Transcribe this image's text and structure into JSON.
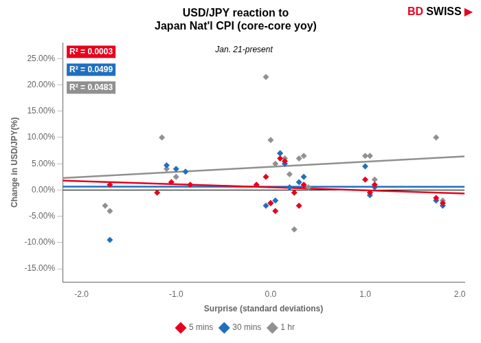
{
  "chart_data": {
    "type": "scatter",
    "title": [
      "USD/JPY reaction to",
      "Japan Nat'l CPI (core-core yoy)"
    ],
    "subtitle": "Jan. 21-present",
    "x_label": "Surprise (standard deviations)",
    "y_label": "Change in USD/JPY(%)",
    "xlim": [
      -2.2,
      2.05
    ],
    "ylim": [
      -0.175,
      0.28
    ],
    "xticks": [
      {
        "value": -2.0,
        "label": "-2.0"
      },
      {
        "value": -1.0,
        "label": "-1.0"
      },
      {
        "value": 0.0,
        "label": "0.0"
      },
      {
        "value": 1.0,
        "label": "1.0"
      },
      {
        "value": 2.0,
        "label": "2.0"
      }
    ],
    "yticks": [
      {
        "value": -0.15,
        "label": "-15.00%"
      },
      {
        "value": -0.1,
        "label": "-10.00%"
      },
      {
        "value": -0.05,
        "label": "-5.00%"
      },
      {
        "value": 0.0,
        "label": "0.00%"
      },
      {
        "value": 0.05,
        "label": "5.00%"
      },
      {
        "value": 0.1,
        "label": "10.00%"
      },
      {
        "value": 0.15,
        "label": "15.00%"
      },
      {
        "value": 0.2,
        "label": "20.00%"
      },
      {
        "value": 0.25,
        "label": "25.00%"
      }
    ],
    "grid": false,
    "legend": "bottom",
    "annotations": [
      {
        "text": "R² = 0.0003",
        "color": "#E8001C"
      },
      {
        "text": "R² = 0.0499",
        "color": "#1F6FBF"
      },
      {
        "text": "R² = 0.0483",
        "color": "#909090"
      }
    ],
    "logo": [
      {
        "text": "BD",
        "color": "#E8001C"
      },
      {
        "text": "SWISS",
        "color": "#000000"
      },
      {
        "text": "▶",
        "color": "#E8001C"
      }
    ],
    "series": [
      {
        "name": "5 mins",
        "type": "scatter",
        "marker": "diamond",
        "color": "#E8001C",
        "x": [
          -1.7,
          -1.2,
          -1.05,
          -0.85,
          -0.15,
          -0.05,
          0.0,
          0.05,
          0.1,
          0.15,
          0.25,
          0.3,
          0.35,
          1.0,
          1.05,
          1.1,
          1.75,
          1.82
        ],
        "values": [
          0.01,
          -0.005,
          0.015,
          0.01,
          0.01,
          0.025,
          -0.025,
          -0.04,
          0.06,
          0.055,
          -0.005,
          -0.03,
          0.01,
          0.02,
          -0.005,
          0.01,
          -0.015,
          -0.025
        ]
      },
      {
        "name": "30 mins",
        "type": "scatter",
        "marker": "diamond",
        "color": "#1F6FBF",
        "x": [
          -1.7,
          -1.1,
          -1.0,
          -0.9,
          -0.05,
          0.0,
          0.05,
          0.1,
          0.15,
          0.2,
          0.3,
          0.35,
          1.0,
          1.05,
          1.1,
          1.75,
          1.82
        ],
        "values": [
          -0.095,
          0.047,
          0.04,
          0.035,
          -0.03,
          -0.025,
          -0.02,
          0.07,
          0.05,
          0.005,
          0.015,
          0.025,
          0.045,
          -0.01,
          0.005,
          -0.02,
          -0.03
        ]
      },
      {
        "name": "1 hr",
        "type": "scatter",
        "marker": "diamond",
        "color": "#909090",
        "x": [
          -1.75,
          -1.7,
          -1.15,
          -1.1,
          -1.0,
          -0.05,
          0.0,
          0.05,
          0.1,
          0.15,
          0.2,
          0.25,
          0.3,
          0.35,
          0.4,
          1.0,
          1.05,
          1.1,
          1.75,
          1.82
        ],
        "values": [
          -0.03,
          -0.04,
          0.1,
          0.04,
          0.025,
          0.215,
          0.095,
          0.05,
          0.07,
          0.06,
          0.03,
          -0.075,
          0.06,
          0.065,
          0.005,
          0.065,
          0.065,
          0.02,
          0.1,
          -0.02
        ]
      },
      {
        "type": "line",
        "line_style": "solid",
        "color": "#E8001C",
        "x": [
          -2.2,
          2.05
        ],
        "values": [
          0.017805,
          -0.0067326
        ]
      },
      {
        "type": "line",
        "line_style": "solid",
        "color": "#1F6FBF",
        "x": [
          -2.2,
          2.05
        ],
        "values": [
          0.0065568,
          0.0060884
        ]
      },
      {
        "type": "line",
        "line_style": "solid",
        "color": "#909090",
        "x": [
          -2.2,
          2.05
        ],
        "values": [
          0.022916,
          0.063929
        ]
      }
    ]
  }
}
